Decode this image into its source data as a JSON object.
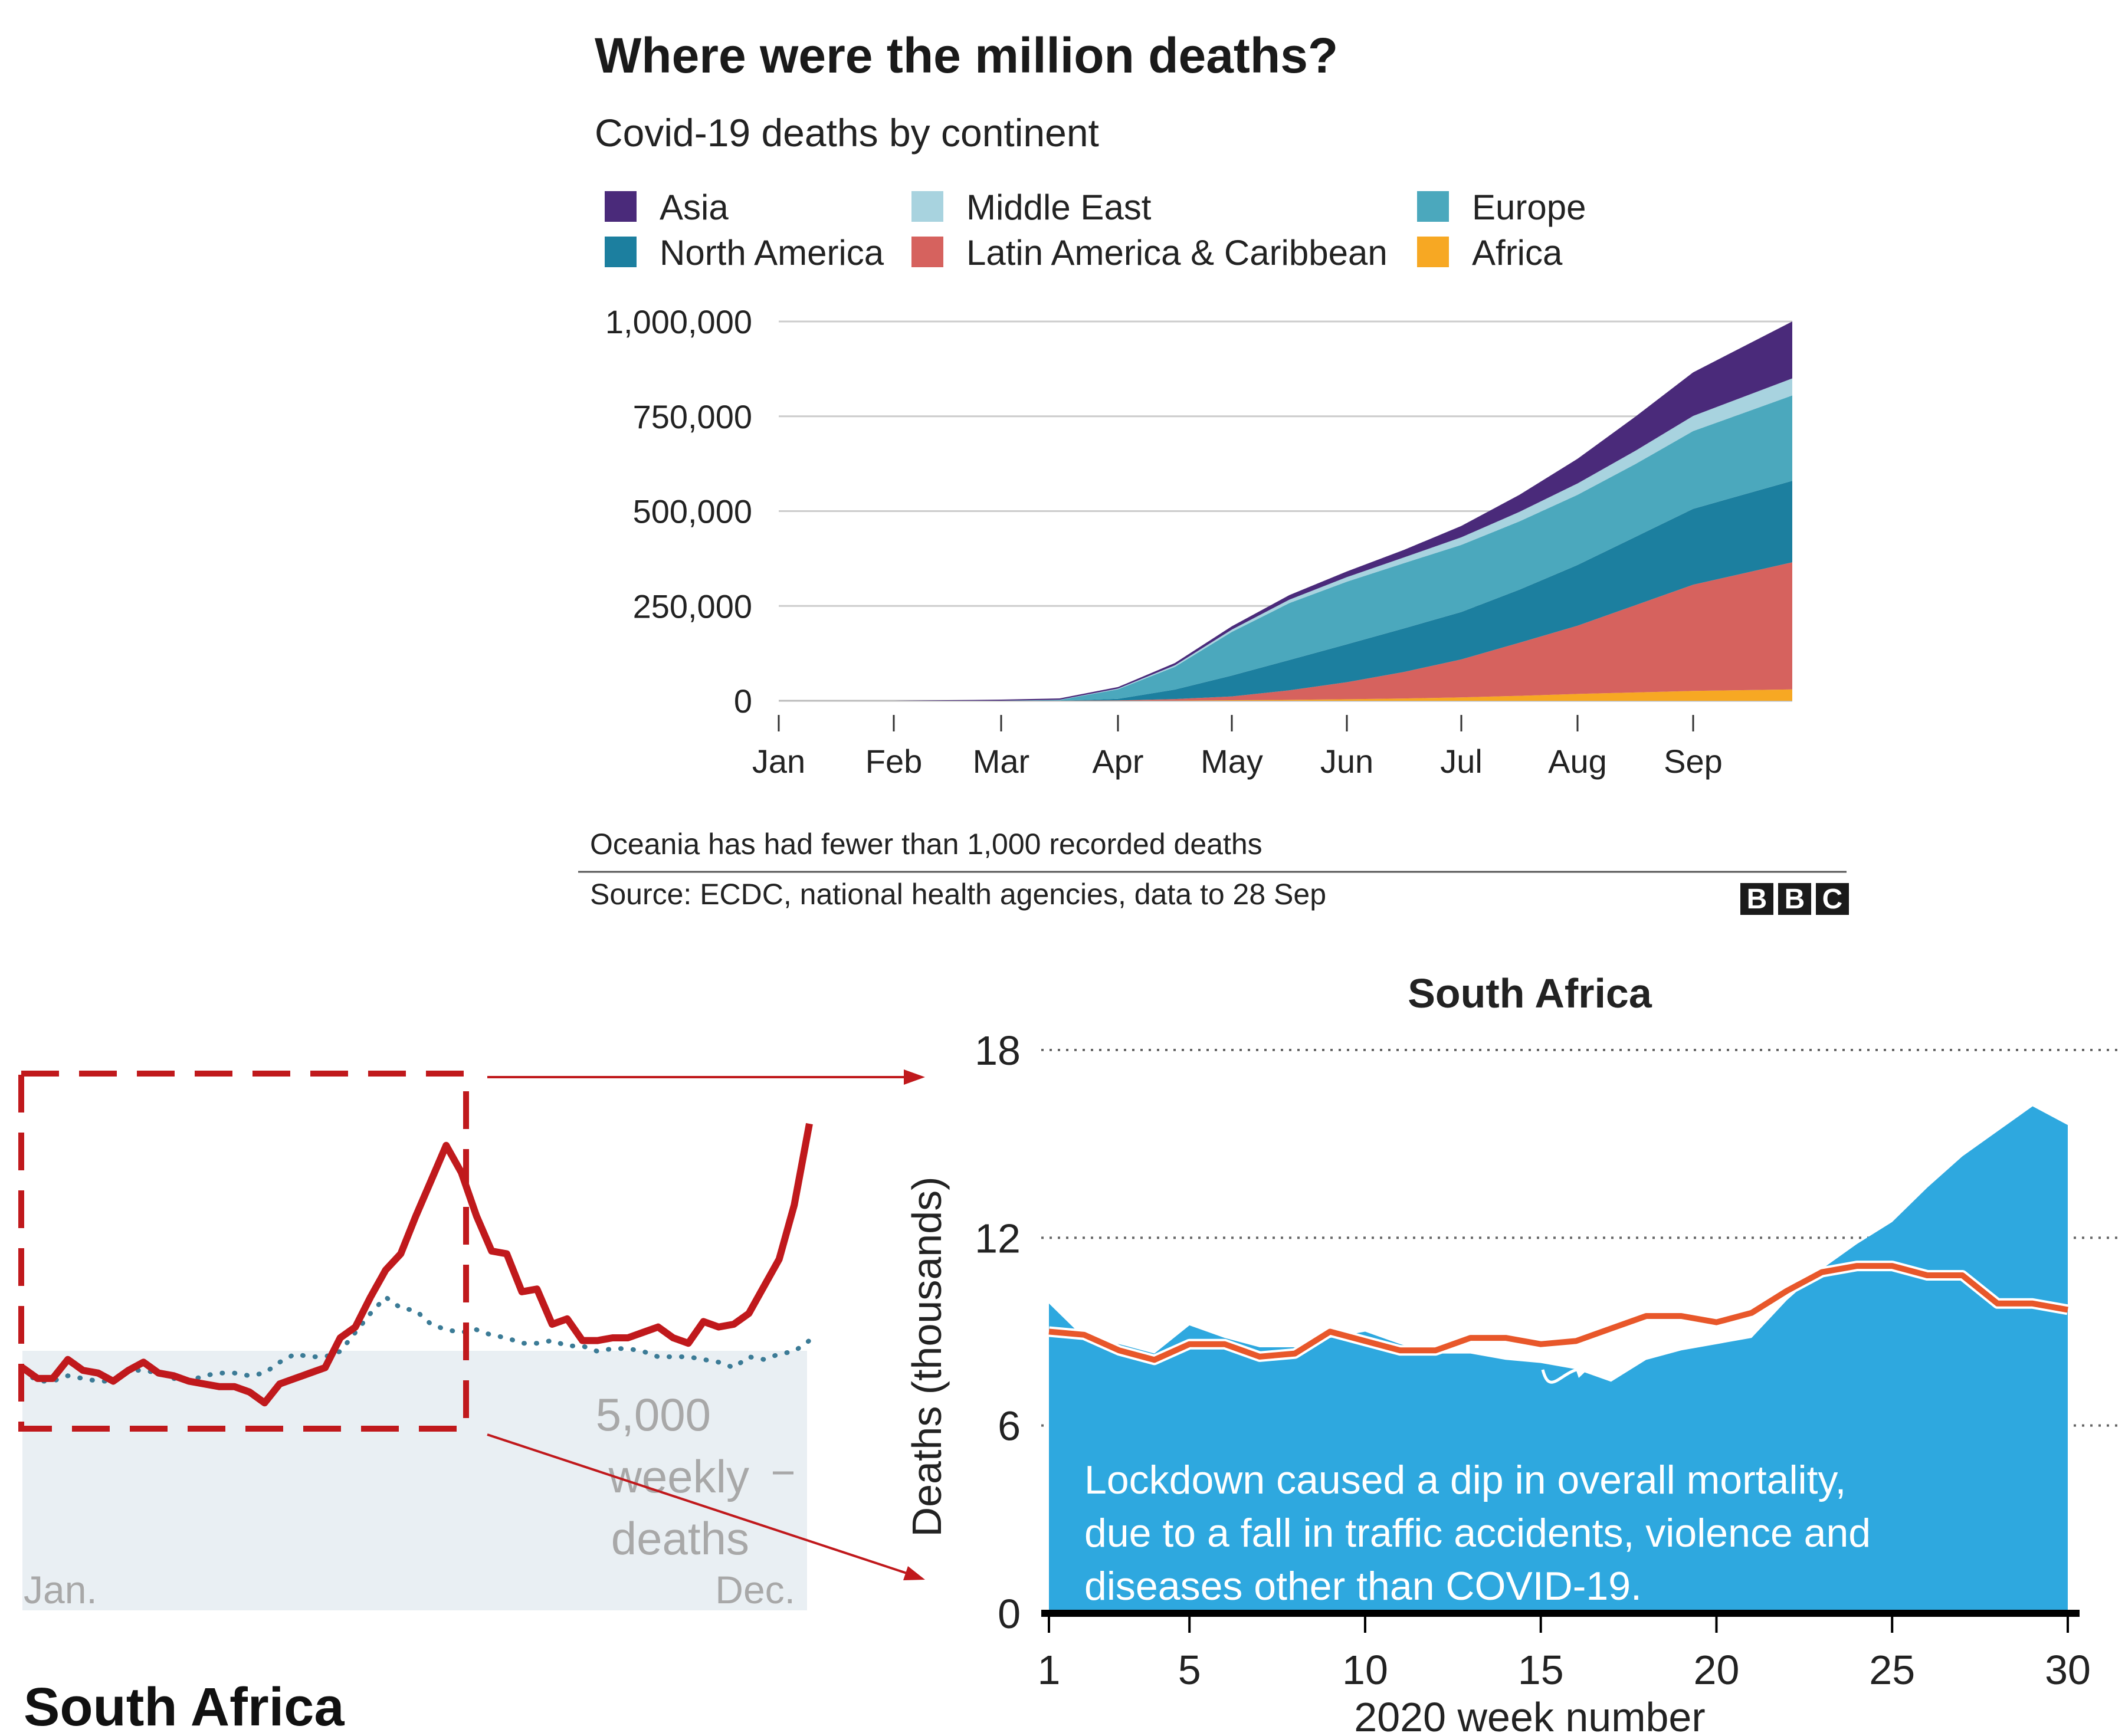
{
  "chart_data": [
    {
      "type": "area",
      "stacked": true,
      "title": "Where were the million deaths?",
      "subtitle": "Covid-19 deaths by continent",
      "legend": [
        {
          "name": "Asia",
          "color": "#4a2a7a"
        },
        {
          "name": "Middle East",
          "color": "#a8d3df"
        },
        {
          "name": "Europe",
          "color": "#4ba8bd"
        },
        {
          "name": "North America",
          "color": "#1c7f9f"
        },
        {
          "name": "Latin America & Caribbean",
          "color": "#d6625e"
        },
        {
          "name": "Africa",
          "color": "#f7a823"
        }
      ],
      "ylim": [
        0,
        1000000
      ],
      "yticks": [
        0,
        250000,
        500000,
        750000,
        1000000
      ],
      "ytick_labels": [
        "0",
        "250,000",
        "500,000",
        "750,000",
        "1,000,000"
      ],
      "xtick_labels": [
        "Jan",
        "Feb",
        "Mar",
        "Apr",
        "May",
        "Jun",
        "Jul",
        "Aug",
        "Sep"
      ],
      "x": [
        "Jan",
        "Feb",
        "Mar",
        "Mar 15",
        "Apr",
        "Apr 15",
        "May",
        "May 15",
        "Jun",
        "Jun 15",
        "Jul",
        "Jul 15",
        "Aug",
        "Aug 15",
        "Sep",
        "Sep 28"
      ],
      "series": [
        {
          "name": "Africa",
          "color": "#f7a823",
          "values": [
            0,
            0,
            0,
            0,
            100,
            500,
            1500,
            2500,
            4000,
            6000,
            9000,
            13000,
            18000,
            22000,
            26000,
            30000
          ]
        },
        {
          "name": "Latin America & Caribbean",
          "color": "#d6625e",
          "values": [
            0,
            0,
            0,
            100,
            1000,
            4000,
            10000,
            25000,
            45000,
            70000,
            100000,
            140000,
            180000,
            230000,
            280000,
            335000
          ]
        },
        {
          "name": "North America",
          "color": "#1c7f9f",
          "values": [
            0,
            0,
            0,
            100,
            4000,
            25000,
            55000,
            80000,
            100000,
            115000,
            125000,
            140000,
            160000,
            180000,
            200000,
            215000
          ]
        },
        {
          "name": "Europe",
          "color": "#4ba8bd",
          "values": [
            0,
            0,
            100,
            2000,
            25000,
            60000,
            115000,
            150000,
            165000,
            172000,
            177000,
            180000,
            185000,
            192000,
            205000,
            225000
          ]
        },
        {
          "name": "Middle East",
          "color": "#a8d3df",
          "values": [
            0,
            0,
            0,
            500,
            2000,
            4000,
            6000,
            9000,
            12000,
            15000,
            20000,
            25000,
            30000,
            35000,
            40000,
            45000
          ]
        },
        {
          "name": "Asia",
          "color": "#4a2a7a",
          "values": [
            0,
            0,
            3000,
            3500,
            4000,
            6000,
            9000,
            12000,
            15000,
            20000,
            30000,
            45000,
            65000,
            90000,
            115000,
            150000
          ]
        }
      ],
      "note": "Oceania has had fewer than 1,000 recorded deaths",
      "source": "Source: ECDC, national health agencies, data to 28 Sep",
      "logo": "BBC"
    },
    {
      "type": "line",
      "title": "South Africa",
      "scale_label_lines": [
        "5,000",
        "weekly",
        "deaths"
      ],
      "x_start_label": "Jan.",
      "x_end_label": "Dec.",
      "weeks": [
        1,
        2,
        3,
        4,
        5,
        6,
        7,
        8,
        9,
        10,
        11,
        12,
        13,
        14,
        15,
        16,
        17,
        18,
        19,
        20,
        21,
        22,
        23,
        24,
        25,
        26,
        27,
        28,
        29,
        30,
        31,
        32,
        33,
        34,
        35,
        36,
        37,
        38,
        39,
        40,
        41,
        42,
        43,
        44,
        45,
        46,
        47,
        48,
        49,
        50,
        51,
        52,
        53
      ],
      "series": [
        {
          "name": "",
          "style": "solid",
          "color": "#c0191c",
          "values": [
            9000,
            8600,
            8600,
            9300,
            8900,
            8800,
            8500,
            8900,
            9200,
            8800,
            8700,
            8500,
            8400,
            8300,
            8300,
            8100,
            7700,
            8400,
            8600,
            8800,
            9000,
            10100,
            10500,
            11600,
            12600,
            13200,
            14600,
            15900,
            17200,
            16200,
            14600,
            13300,
            13200,
            11800,
            11900,
            10600,
            10800,
            10000,
            10000,
            10100,
            10100,
            10300,
            10500,
            10100,
            9900,
            10700,
            10500,
            10600,
            11000,
            12000,
            13000,
            15000,
            18000
          ]
        },
        {
          "name": "",
          "style": "dotted",
          "color": "#3b7b96",
          "values": [
            8900,
            8500,
            8500,
            8700,
            8600,
            8500,
            8500,
            8900,
            8900,
            8800,
            8600,
            8500,
            8700,
            8800,
            8800,
            8700,
            8800,
            9200,
            9500,
            9400,
            9400,
            9600,
            10300,
            11000,
            11600,
            11200,
            11100,
            10600,
            10400,
            10300,
            10400,
            10200,
            10100,
            9900,
            9900,
            10000,
            9800,
            9800,
            9600,
            9700,
            9700,
            9600,
            9400,
            9400,
            9400,
            9300,
            9200,
            9000,
            9400,
            9300,
            9500,
            9600,
            10000
          ]
        }
      ]
    },
    {
      "type": "area",
      "title": "South Africa",
      "xlabel": "2020 week number",
      "ylabel": "Deaths (thousands)",
      "ylim": [
        0,
        18
      ],
      "yticks": [
        0,
        6,
        12,
        18
      ],
      "xticks": [
        1,
        5,
        10,
        15,
        20,
        25,
        30
      ],
      "annotation_lines": [
        "Lockdown caused a dip in overall mortality,",
        "due to a fall in traffic accidents, violence and",
        "diseases other than COVID-19."
      ],
      "series": [
        {
          "name": "",
          "type": "area",
          "color": "#2ea8df",
          "x": [
            1,
            2,
            3,
            4,
            5,
            6,
            7,
            8,
            9,
            10,
            11,
            12,
            13,
            14,
            15,
            16,
            17,
            18,
            19,
            20,
            21,
            22,
            23,
            24,
            25,
            26,
            27,
            28,
            29,
            30
          ],
          "values": [
            9.9,
            8.8,
            8.6,
            8.3,
            9.2,
            8.8,
            8.5,
            8.5,
            8.8,
            9.0,
            8.6,
            8.3,
            8.3,
            8.1,
            8.0,
            7.8,
            7.4,
            8.1,
            8.4,
            8.6,
            8.8,
            10.0,
            11.0,
            11.8,
            12.5,
            13.6,
            14.6,
            15.4,
            16.2,
            15.6
          ]
        },
        {
          "name": "",
          "type": "line",
          "color": "#e8572a",
          "x": [
            1,
            2,
            3,
            4,
            5,
            6,
            7,
            8,
            9,
            10,
            11,
            12,
            13,
            14,
            15,
            16,
            17,
            18,
            19,
            20,
            21,
            22,
            23,
            24,
            25,
            26,
            27,
            28,
            29,
            30
          ],
          "values": [
            9.0,
            8.9,
            8.4,
            8.1,
            8.6,
            8.6,
            8.2,
            8.3,
            9.0,
            8.7,
            8.4,
            8.4,
            8.8,
            8.8,
            8.6,
            8.7,
            9.1,
            9.5,
            9.5,
            9.3,
            9.6,
            10.3,
            10.9,
            11.1,
            11.1,
            10.8,
            10.8,
            9.9,
            9.9,
            9.7
          ]
        }
      ]
    }
  ]
}
